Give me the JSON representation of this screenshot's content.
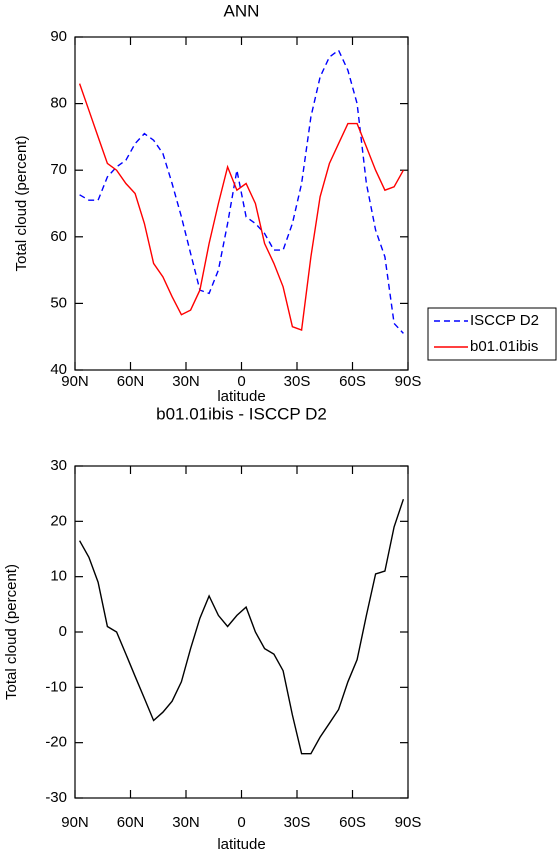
{
  "chart_data": [
    {
      "type": "line",
      "title": "ANN",
      "x_label": "latitude",
      "y_label": "Total cloud (percent)",
      "x": [
        87.5,
        82.5,
        77.5,
        72.5,
        67.5,
        62.5,
        57.5,
        52.5,
        47.5,
        42.5,
        37.5,
        32.5,
        27.5,
        22.5,
        17.5,
        12.5,
        7.5,
        2.5,
        -2.5,
        -7.5,
        -12.5,
        -17.5,
        -22.5,
        -27.5,
        -32.5,
        -37.5,
        -42.5,
        -47.5,
        -52.5,
        -57.5,
        -62.5,
        -67.5,
        -72.5,
        -77.5,
        -82.5,
        -87.5
      ],
      "xlim": [
        90,
        -90
      ],
      "xticks": [
        {
          "value": 90,
          "label": "90N"
        },
        {
          "value": 60,
          "label": "60N"
        },
        {
          "value": 30,
          "label": "30N"
        },
        0,
        {
          "value": -30,
          "label": "30S"
        },
        {
          "value": -60,
          "label": "60S"
        },
        {
          "value": -90,
          "label": "90S"
        }
      ],
      "ylim": [
        40,
        90
      ],
      "yticks": [
        40,
        50,
        60,
        70,
        80,
        90
      ],
      "legend": "right",
      "series": [
        {
          "name": "ISCCP D2",
          "color": "#0000ff",
          "dashed": true,
          "values": [
            66.3,
            65.5,
            65.5,
            69,
            70.5,
            71.5,
            74,
            75.5,
            74.5,
            72.5,
            68,
            63,
            57.5,
            52,
            51.5,
            55,
            62,
            70,
            63,
            62,
            60.5,
            58,
            58,
            62,
            68,
            78,
            84,
            87,
            88,
            85,
            80,
            68,
            61,
            57,
            47,
            45.5
          ]
        },
        {
          "name": "b01.01ibis",
          "color": "#ff0000",
          "dashed": false,
          "values": [
            83,
            79,
            75,
            71,
            70,
            68,
            66.5,
            62,
            56,
            54,
            51,
            48.3,
            49,
            52,
            59,
            65,
            70.5,
            67,
            68,
            65,
            59,
            56,
            52.5,
            46.5,
            46,
            57,
            66,
            71,
            74,
            77,
            77,
            73.5,
            70,
            67,
            67.5,
            70
          ]
        }
      ]
    },
    {
      "type": "line",
      "title": "b01.01ibis - ISCCP D2",
      "x_label": "latitude",
      "y_label": "Total cloud (percent)",
      "x": [
        87.5,
        82.5,
        77.5,
        72.5,
        67.5,
        62.5,
        57.5,
        52.5,
        47.5,
        42.5,
        37.5,
        32.5,
        27.5,
        22.5,
        17.5,
        12.5,
        7.5,
        2.5,
        -2.5,
        -7.5,
        -12.5,
        -17.5,
        -22.5,
        -27.5,
        -32.5,
        -37.5,
        -42.5,
        -47.5,
        -52.5,
        -57.5,
        -62.5,
        -67.5,
        -72.5,
        -77.5,
        -82.5,
        -87.5
      ],
      "xlim": [
        90,
        -90
      ],
      "xticks": [
        {
          "value": 90,
          "label": "90N"
        },
        {
          "value": 60,
          "label": "60N"
        },
        {
          "value": 30,
          "label": "30N"
        },
        0,
        {
          "value": -30,
          "label": "30S"
        },
        {
          "value": -60,
          "label": "60S"
        },
        {
          "value": -90,
          "label": "90S"
        }
      ],
      "ylim": [
        -30,
        30
      ],
      "yticks": [
        -30,
        -20,
        -10,
        0,
        10,
        20,
        30
      ],
      "series": [
        {
          "color": "#000000",
          "dashed": false,
          "values": [
            16.5,
            13.5,
            9,
            1,
            0,
            -4,
            -8,
            -12,
            -16,
            -14.5,
            -12.5,
            -9,
            -3,
            2.5,
            6.5,
            3,
            1,
            3,
            4.5,
            0,
            -3,
            -4,
            -7,
            -15,
            -22,
            -22,
            -19,
            -16.5,
            -14,
            -9,
            -5,
            3,
            10.5,
            11,
            19,
            24
          ]
        }
      ]
    }
  ]
}
